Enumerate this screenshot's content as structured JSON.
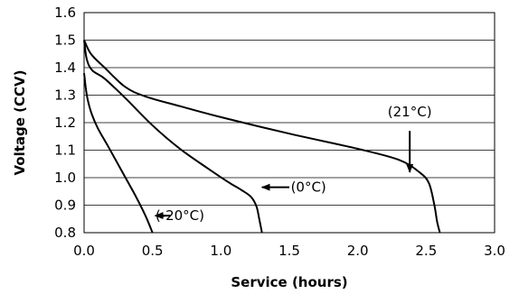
{
  "chart_data": {
    "type": "line",
    "title": "",
    "xlabel": "Service (hours)",
    "ylabel": "Voltage (CCV)",
    "xlim": [
      0,
      3
    ],
    "ylim": [
      0.8,
      1.6
    ],
    "x_ticks": [
      "0.0",
      "0.5",
      "1.0",
      "1.5",
      "2.0",
      "2.5",
      "3.0"
    ],
    "y_ticks": [
      "0.8",
      "0.9",
      "1.0",
      "1.1",
      "1.2",
      "1.3",
      "1.4",
      "1.5",
      "1.6"
    ],
    "grid": "horizontal",
    "line_color": "#000000",
    "series": [
      {
        "name": "(21°C)",
        "points": [
          [
            0,
            1.5
          ],
          [
            0.05,
            1.45
          ],
          [
            0.15,
            1.4
          ],
          [
            0.3,
            1.33
          ],
          [
            0.45,
            1.295
          ],
          [
            0.7,
            1.26
          ],
          [
            1.0,
            1.22
          ],
          [
            1.5,
            1.16
          ],
          [
            2.0,
            1.105
          ],
          [
            2.3,
            1.065
          ],
          [
            2.45,
            1.02
          ],
          [
            2.52,
            0.98
          ],
          [
            2.56,
            0.9
          ],
          [
            2.58,
            0.84
          ],
          [
            2.6,
            0.8
          ]
        ],
        "label_at": [
          2.38,
          1.24
        ],
        "arrow_from": [
          2.38,
          1.17
        ],
        "arrow_to": [
          2.38,
          1.02
        ]
      },
      {
        "name": "(0°C)",
        "points": [
          [
            0,
            1.5
          ],
          [
            0.02,
            1.43
          ],
          [
            0.06,
            1.39
          ],
          [
            0.15,
            1.36
          ],
          [
            0.3,
            1.29
          ],
          [
            0.5,
            1.19
          ],
          [
            0.7,
            1.105
          ],
          [
            0.9,
            1.035
          ],
          [
            1.05,
            0.985
          ],
          [
            1.15,
            0.955
          ],
          [
            1.22,
            0.93
          ],
          [
            1.26,
            0.895
          ],
          [
            1.28,
            0.85
          ],
          [
            1.3,
            0.8
          ]
        ],
        "label_at": [
          1.64,
          0.965
        ],
        "arrow_from": [
          1.5,
          0.965
        ],
        "arrow_to": [
          1.3,
          0.965
        ]
      },
      {
        "name": "(-20°C)",
        "points": [
          [
            0,
            1.38
          ],
          [
            0.02,
            1.3
          ],
          [
            0.05,
            1.24
          ],
          [
            0.1,
            1.18
          ],
          [
            0.18,
            1.11
          ],
          [
            0.28,
            1.02
          ],
          [
            0.38,
            0.93
          ],
          [
            0.45,
            0.86
          ],
          [
            0.5,
            0.8
          ]
        ],
        "label_at": [
          0.7,
          0.862
        ],
        "arrow_from": [
          0.63,
          0.862
        ],
        "arrow_to": [
          0.52,
          0.862
        ]
      }
    ]
  }
}
